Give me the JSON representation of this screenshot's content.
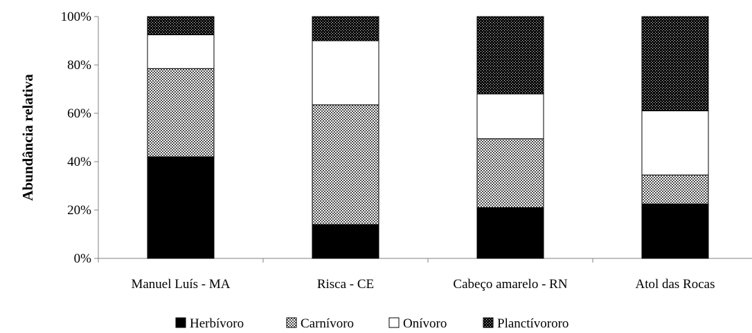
{
  "chart_data": {
    "type": "bar",
    "stacked": true,
    "percent": true,
    "categories": [
      "Manuel Luís - MA",
      "Risca - CE",
      "Cabeço amarelo - RN",
      "Atol das Rocas"
    ],
    "series": [
      {
        "name": "Herbívoro",
        "values": [
          42,
          14,
          21,
          22.5
        ],
        "pattern": "solid-black"
      },
      {
        "name": "Carnívoro",
        "values": [
          36.5,
          49.5,
          28.5,
          12
        ],
        "pattern": "gray-crosshatch"
      },
      {
        "name": "Onívoro",
        "values": [
          14,
          26.5,
          18.5,
          26.5
        ],
        "pattern": "white"
      },
      {
        "name": "Planctívororo",
        "values": [
          7.5,
          10,
          32,
          39
        ],
        "pattern": "black-dense-dots"
      }
    ],
    "title": "",
    "xlabel": "",
    "ylabel": "Abundância relativa",
    "ylim": [
      0,
      100
    ],
    "yticks": [
      "0%",
      "20%",
      "40%",
      "60%",
      "80%",
      "100%"
    ],
    "grid": false,
    "legend_position": "bottom"
  }
}
